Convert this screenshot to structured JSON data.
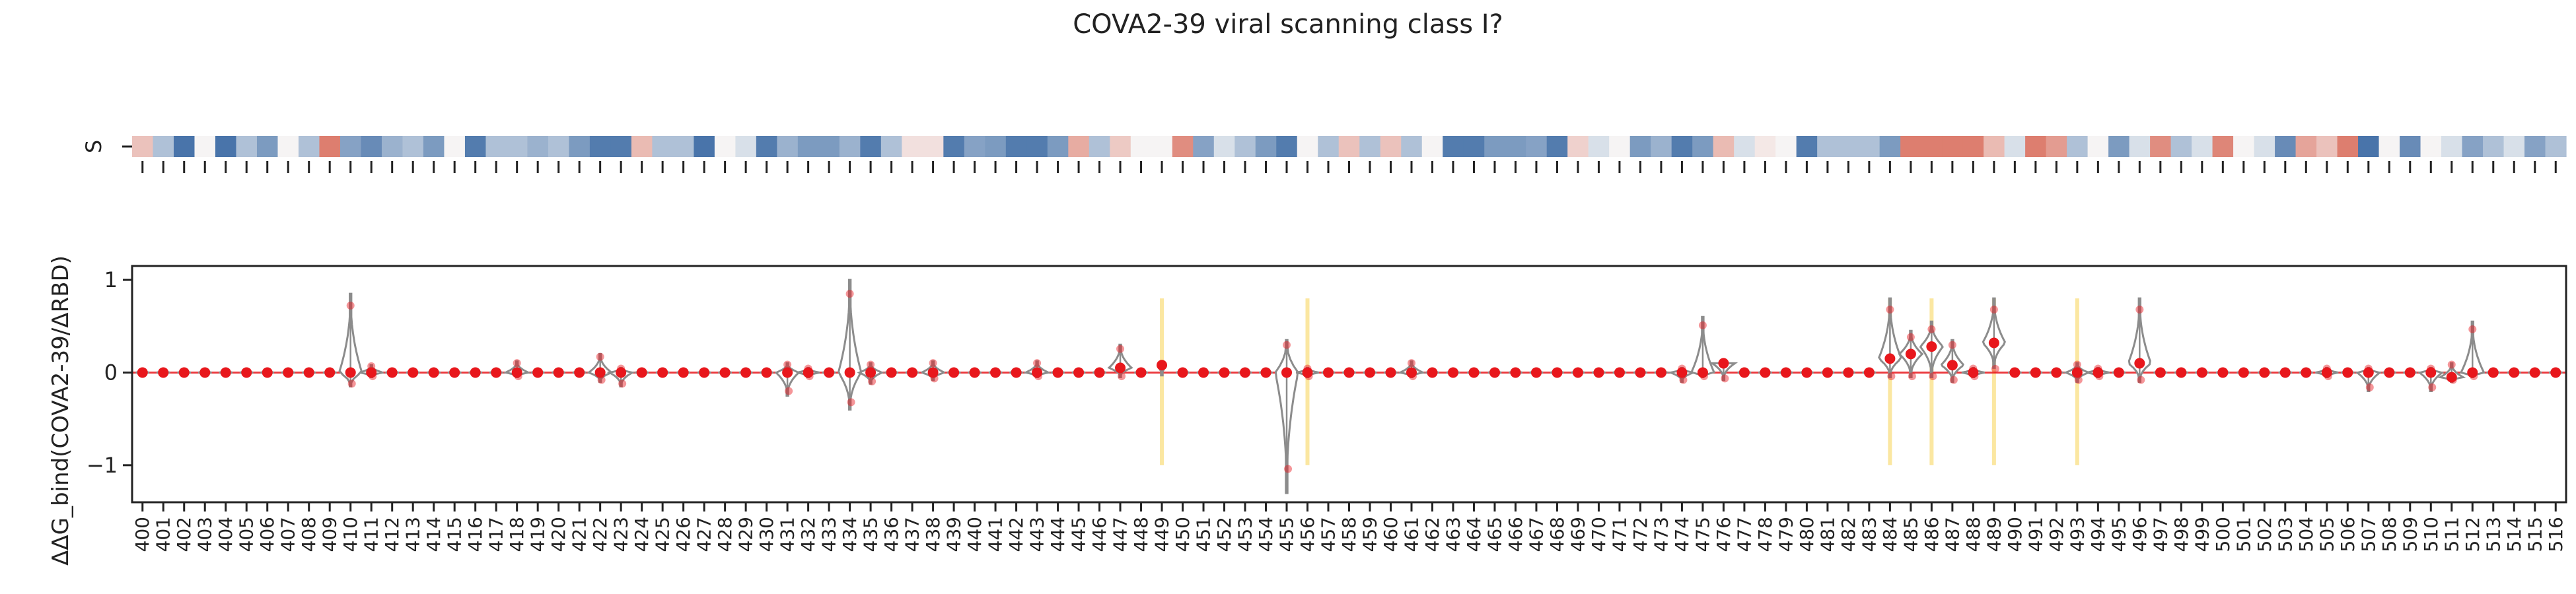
{
  "chart_data": [
    {
      "type": "heatmap",
      "title": "COVA2-39 viral scanning class I?",
      "row_labels": [
        "S"
      ],
      "columns": [
        400,
        401,
        402,
        403,
        404,
        405,
        406,
        407,
        408,
        409,
        410,
        411,
        412,
        413,
        414,
        415,
        416,
        417,
        418,
        419,
        420,
        421,
        422,
        423,
        424,
        425,
        426,
        427,
        428,
        429,
        430,
        431,
        432,
        433,
        434,
        435,
        436,
        437,
        438,
        439,
        440,
        441,
        442,
        443,
        444,
        445,
        446,
        447,
        448,
        449,
        450,
        451,
        452,
        453,
        454,
        455,
        456,
        457,
        458,
        459,
        460,
        461,
        462,
        463,
        464,
        465,
        466,
        467,
        468,
        469,
        470,
        471,
        472,
        473,
        474,
        475,
        476,
        477,
        478,
        479,
        480,
        481,
        482,
        483,
        484,
        485,
        486,
        487,
        488,
        489,
        490,
        491,
        492,
        493,
        494,
        495,
        496,
        497,
        498,
        499,
        500,
        501,
        502,
        503,
        504,
        505,
        506,
        507,
        508,
        509,
        510,
        511,
        512,
        513,
        514,
        515,
        516
      ],
      "values": [
        0.35,
        -0.35,
        -0.85,
        0.02,
        -0.85,
        -0.35,
        -0.6,
        0.02,
        -0.35,
        0.8,
        -0.55,
        -0.7,
        -0.45,
        -0.35,
        -0.6,
        0.02,
        -0.8,
        -0.35,
        -0.35,
        -0.45,
        -0.35,
        -0.6,
        -0.8,
        -0.8,
        0.4,
        -0.35,
        -0.35,
        -0.85,
        0.02,
        -0.15,
        -0.8,
        -0.45,
        -0.6,
        -0.6,
        -0.45,
        -0.8,
        -0.35,
        0.15,
        0.15,
        -0.8,
        -0.55,
        -0.6,
        -0.8,
        -0.8,
        -0.6,
        0.5,
        -0.35,
        0.3,
        0.02,
        0.02,
        0.7,
        -0.55,
        -0.15,
        -0.35,
        -0.6,
        -0.8,
        0.02,
        -0.35,
        0.35,
        -0.35,
        0.35,
        -0.35,
        0.02,
        -0.8,
        -0.8,
        -0.6,
        -0.6,
        -0.55,
        -0.8,
        0.25,
        -0.15,
        0.02,
        -0.6,
        -0.45,
        -0.8,
        -0.6,
        0.4,
        -0.15,
        0.1,
        0.02,
        -0.8,
        -0.35,
        -0.35,
        -0.35,
        -0.6,
        0.8,
        0.8,
        0.8,
        0.8,
        0.4,
        -0.15,
        0.8,
        0.6,
        -0.35,
        0.02,
        -0.6,
        -0.15,
        0.7,
        -0.35,
        -0.15,
        0.75,
        0.02,
        -0.15,
        -0.7,
        0.55,
        0.35,
        0.8,
        -0.85,
        0.02,
        -0.7,
        0.02,
        -0.15,
        -0.55,
        -0.35,
        -0.15,
        -0.55,
        -0.35
      ],
      "color_scale": {
        "negative": "#2a5d9c",
        "neutral": "#f7f7f7",
        "positive": "#d6604d"
      }
    },
    {
      "type": "violin",
      "title": "",
      "ylabel": "ΔΔG_bind(COVA2-39/ΔRBD)",
      "y_tick_labels": [
        "1",
        "0",
        "−1"
      ],
      "y_ticks": [
        1,
        0,
        -1
      ],
      "ylim": [
        -1.4,
        1.15
      ],
      "x_categories": [
        "400",
        "401",
        "402",
        "403",
        "404",
        "405",
        "406",
        "407",
        "408",
        "409",
        "410",
        "411",
        "412",
        "413",
        "414",
        "415",
        "416",
        "417",
        "418",
        "419",
        "420",
        "421",
        "422",
        "423",
        "424",
        "425",
        "426",
        "427",
        "428",
        "429",
        "430",
        "431",
        "432",
        "433",
        "434",
        "435",
        "436",
        "437",
        "438",
        "439",
        "440",
        "441",
        "442",
        "443",
        "444",
        "445",
        "446",
        "447",
        "448",
        "449",
        "450",
        "451",
        "452",
        "453",
        "454",
        "455",
        "456",
        "457",
        "458",
        "459",
        "460",
        "461",
        "462",
        "463",
        "464",
        "465",
        "466",
        "467",
        "468",
        "469",
        "470",
        "471",
        "472",
        "473",
        "474",
        "475",
        "476",
        "477",
        "478",
        "479",
        "480",
        "481",
        "482",
        "483",
        "484",
        "485",
        "486",
        "487",
        "488",
        "489",
        "490",
        "491",
        "492",
        "493",
        "494",
        "495",
        "496",
        "497",
        "498",
        "499",
        "500",
        "501",
        "502",
        "503",
        "504",
        "505",
        "506",
        "507",
        "508",
        "509",
        "510",
        "511",
        "512",
        "513",
        "514",
        "515",
        "516"
      ],
      "spread": {
        "410": [
          -0.15,
          0.85
        ],
        "411": [
          -0.05,
          0.08
        ],
        "418": [
          -0.05,
          0.12
        ],
        "422": [
          -0.1,
          0.2
        ],
        "423": [
          -0.15,
          0.05
        ],
        "431": [
          -0.25,
          0.1
        ],
        "432": [
          -0.05,
          0.05
        ],
        "434": [
          -0.4,
          1.0
        ],
        "435": [
          -0.12,
          0.1
        ],
        "438": [
          -0.08,
          0.12
        ],
        "443": [
          -0.05,
          0.12
        ],
        "447": [
          -0.05,
          0.3
        ],
        "455": [
          -1.3,
          0.35
        ],
        "456": [
          -0.05,
          0.05
        ],
        "461": [
          -0.05,
          0.12
        ],
        "474": [
          -0.1,
          0.05
        ],
        "475": [
          -0.05,
          0.6
        ],
        "476": [
          -0.08,
          0.1
        ],
        "484": [
          -0.05,
          0.8
        ],
        "485": [
          -0.05,
          0.45
        ],
        "486": [
          -0.05,
          0.55
        ],
        "487": [
          -0.1,
          0.35
        ],
        "488": [
          -0.05,
          0.05
        ],
        "489": [
          0.05,
          0.8
        ],
        "493": [
          -0.1,
          0.1
        ],
        "494": [
          -0.05,
          0.05
        ],
        "496": [
          -0.1,
          0.8
        ],
        "505": [
          -0.05,
          0.05
        ],
        "507": [
          -0.2,
          0.05
        ],
        "510": [
          -0.2,
          0.05
        ],
        "511": [
          -0.1,
          0.1
        ],
        "512": [
          -0.05,
          0.55
        ]
      },
      "medians": {
        "447": 0.05,
        "449": 0.08,
        "455": 0.0,
        "476": 0.1,
        "484": 0.15,
        "485": 0.2,
        "486": 0.28,
        "487": 0.08,
        "489": 0.32,
        "496": 0.1,
        "511": -0.05
      },
      "highlighted_positions": [
        "449",
        "456",
        "484",
        "486",
        "489",
        "493"
      ],
      "highlight_color": "#fbe7a1",
      "point_color": "#e8171c",
      "violin_color": "#8c8c8c"
    }
  ]
}
